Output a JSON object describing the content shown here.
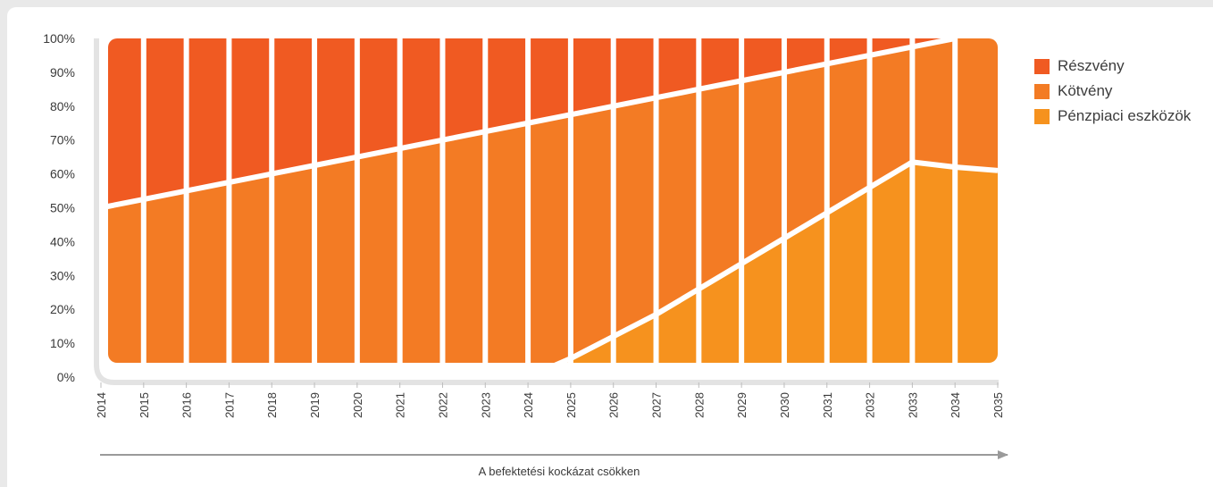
{
  "chart_data": {
    "type": "area",
    "stacked": true,
    "x": [
      2014,
      2015,
      2016,
      2017,
      2018,
      2019,
      2020,
      2021,
      2022,
      2023,
      2024,
      2025,
      2026,
      2027,
      2028,
      2029,
      2030,
      2031,
      2032,
      2033,
      2034,
      2035
    ],
    "x_tick_labels": [
      "2014",
      "2015",
      "2016",
      "2017",
      "2018",
      "2019",
      "2020",
      "2021",
      "2022",
      "2023",
      "2024",
      "2025",
      "2026",
      "2027",
      "2028",
      "2029",
      "2030",
      "2031",
      "2032",
      "2033",
      "2034",
      "2035"
    ],
    "y_tick_labels": [
      "0%",
      "10%",
      "20%",
      "30%",
      "40%",
      "50%",
      "60%",
      "70%",
      "80%",
      "90%",
      "100%"
    ],
    "ylim": [
      0,
      100
    ],
    "xlim": [
      2014,
      2035
    ],
    "series": [
      {
        "name": "Részvény",
        "color": "#f05a22",
        "values": [
          50,
          47.5,
          45,
          42.5,
          40,
          37.5,
          35,
          32.5,
          30,
          27.5,
          25,
          22.5,
          20,
          17.5,
          15,
          12.5,
          10,
          7.5,
          5,
          2.5,
          0,
          0
        ]
      },
      {
        "name": "Kötvény",
        "color": "#f37b24",
        "values": [
          50,
          52.5,
          55,
          57.5,
          60,
          62.5,
          65,
          67.5,
          70,
          72.5,
          75,
          72,
          68,
          64,
          59,
          54,
          49,
          44,
          39,
          34,
          38,
          39
        ]
      },
      {
        "name": "Pénzpiaci eszközök",
        "color": "#f6921e",
        "values": [
          0,
          0,
          0,
          0,
          0,
          0,
          0,
          0,
          0,
          0,
          0,
          5.5,
          12,
          18.5,
          26,
          33.5,
          41,
          48.5,
          56,
          63.5,
          62,
          61
        ]
      }
    ],
    "xlabel": "A befektetési kockázat csökken",
    "ylabel": "",
    "legend_position": "right",
    "grid": false
  }
}
